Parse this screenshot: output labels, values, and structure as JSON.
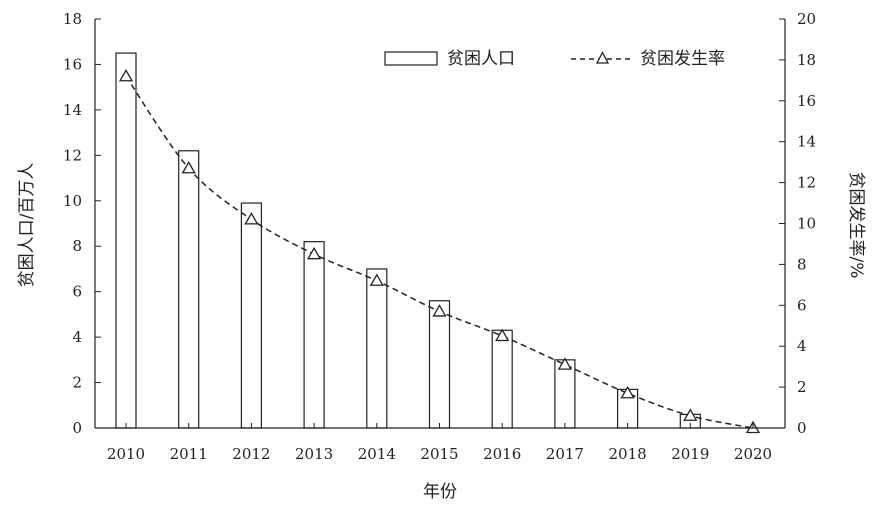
{
  "chart_data": {
    "type": "bar",
    "categories": [
      "2010",
      "2011",
      "2012",
      "2013",
      "2014",
      "2015",
      "2016",
      "2017",
      "2018",
      "2019",
      "2020"
    ],
    "series": [
      {
        "name": "贫困人口",
        "type": "bar",
        "axis": "left",
        "values": [
          16.5,
          12.2,
          9.9,
          8.2,
          7.0,
          5.6,
          4.3,
          3.0,
          1.7,
          0.6,
          0
        ]
      },
      {
        "name": "贫困发生率",
        "type": "line",
        "axis": "right",
        "style": "dashed",
        "marker": "triangle",
        "values": [
          17.2,
          12.7,
          10.2,
          8.5,
          7.2,
          5.7,
          4.5,
          3.1,
          1.7,
          0.6,
          0
        ]
      }
    ],
    "xlabel": "年份",
    "ylabel_left": "贫困人口/百万人",
    "ylabel_right": "贫困发生率/%",
    "ylim_left": [
      0,
      18
    ],
    "ylim_right": [
      0,
      20
    ],
    "yticks_left": [
      0,
      2,
      4,
      6,
      8,
      10,
      12,
      14,
      16,
      18
    ],
    "yticks_right": [
      0,
      2,
      4,
      6,
      8,
      10,
      12,
      14,
      16,
      18,
      20
    ],
    "legend_position": "top-right",
    "grid": false,
    "colors": {
      "axis": "#222222",
      "bar_fill": "#ffffff",
      "bar_stroke": "#222222",
      "line": "#222222"
    }
  }
}
